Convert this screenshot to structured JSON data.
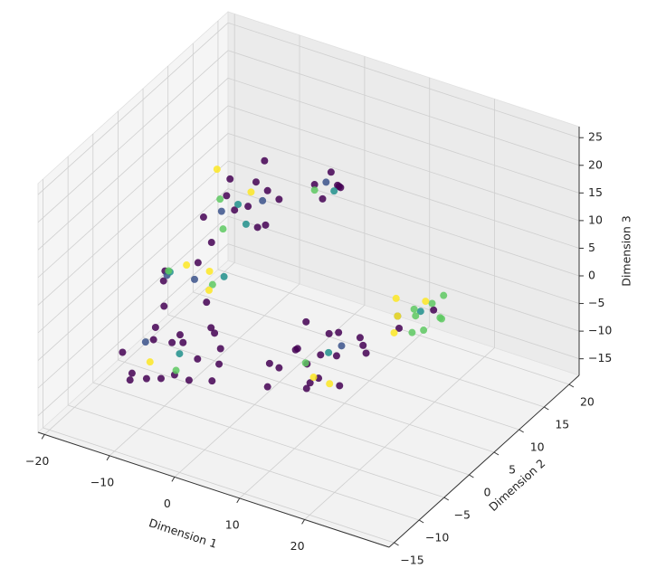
{
  "chart_data": {
    "type": "scatter3d",
    "xlabel": "Dimension 1",
    "ylabel": "Dimension 2",
    "zlabel": "Dimension 3",
    "xlim": [
      -21,
      33
    ],
    "ylim": [
      -16,
      22
    ],
    "zlim": [
      -18,
      27
    ],
    "xticks": [
      {
        "value": -20,
        "label": "−20"
      },
      {
        "value": -10,
        "label": "−10"
      },
      0,
      10,
      20
    ],
    "yticks": [
      {
        "value": -15,
        "label": "−15"
      },
      {
        "value": -10,
        "label": "−10"
      },
      {
        "value": -5,
        "label": "−5"
      },
      0,
      5,
      10,
      15,
      20
    ],
    "zticks": [
      {
        "value": -15,
        "label": "−15"
      },
      {
        "value": -10,
        "label": "−10"
      },
      {
        "value": -5,
        "label": "−5"
      },
      0,
      5,
      10,
      15,
      20,
      25
    ],
    "grid": true,
    "series": [
      {
        "color": "#440154",
        "x": [
          -18,
          -16,
          -15,
          -14,
          -13,
          -12,
          -11,
          -10,
          -9,
          -8,
          -7,
          -6,
          -13,
          -17,
          -10,
          -5,
          -15,
          -9,
          -12,
          -7,
          0,
          2,
          3,
          4,
          5,
          6,
          7,
          8,
          9,
          10,
          1,
          3,
          6,
          8,
          11,
          4,
          7,
          2,
          -14,
          -12,
          -11,
          -10,
          -9,
          -8,
          -7,
          -13,
          -10,
          -6,
          -12,
          -8,
          0,
          1,
          2,
          3,
          4,
          2,
          13,
          16,
          -14,
          -11,
          -13
        ],
        "y": [
          -3,
          1,
          -5,
          -2,
          2,
          -6,
          0,
          -3,
          3,
          -1,
          -4,
          1,
          -8,
          4,
          5,
          -2,
          3,
          -7,
          6,
          2,
          3,
          6,
          1,
          8,
          4,
          9,
          2,
          6,
          10,
          4,
          9,
          11,
          5,
          0,
          8,
          3,
          12,
          0,
          8,
          10,
          13,
          9,
          12,
          11,
          14,
          12,
          15,
          10,
          7,
          13,
          12,
          14,
          11,
          13,
          12,
          14,
          12,
          15,
          0,
          3,
          -1
        ],
        "z": [
          -13,
          -11,
          -14,
          -10,
          -12,
          -13,
          -11,
          -14,
          -10,
          -12,
          -13,
          -11,
          -12,
          -10,
          -13,
          -14,
          -15,
          -11,
          -9,
          -15,
          -13,
          -12,
          -11,
          -14,
          -12,
          -10,
          -13,
          -11,
          -12,
          -14,
          -10,
          -13,
          -15,
          -12,
          -11,
          -9,
          -13,
          -14,
          4,
          7,
          3,
          6,
          9,
          2,
          5,
          8,
          10,
          4,
          1,
          7,
          12,
          13,
          11,
          12,
          13,
          11,
          -9,
          -7,
          -1,
          1,
          2
        ]
      },
      {
        "color": "#3b528b",
        "x": [
          -15,
          -10,
          -12,
          1,
          8,
          12,
          -16,
          -8
        ],
        "y": [
          2,
          1,
          9,
          13,
          7,
          13,
          -1,
          12
        ],
        "z": [
          -2,
          0,
          5,
          12,
          -10,
          -8,
          -12,
          6
        ]
      },
      {
        "color": "#21918c",
        "x": [
          -11,
          -9,
          -13,
          6,
          14,
          3,
          -10,
          -7
        ],
        "y": [
          11,
          10,
          0,
          7,
          15,
          12,
          -2,
          3
        ],
        "z": [
          5,
          3,
          1,
          -12,
          -8,
          12,
          -11,
          0
        ]
      },
      {
        "color": "#5ec962",
        "x": [
          14,
          15,
          16,
          17,
          18,
          15,
          13,
          16,
          -13,
          -11,
          -14,
          4,
          -9,
          0,
          -8
        ],
        "y": [
          14,
          16,
          13,
          15,
          14,
          12,
          15,
          17,
          10,
          8,
          1,
          5,
          -4,
          12,
          2
        ],
        "z": [
          -8,
          -7,
          -9,
          -8,
          -7,
          -9,
          -8,
          -6,
          6,
          3,
          0,
          -13,
          -12,
          11,
          -1
        ]
      },
      {
        "color": "#fde725",
        "x": [
          12,
          13,
          14,
          11,
          -12,
          -10,
          -9,
          -13,
          6,
          -15,
          10,
          -7
        ],
        "y": [
          13,
          11,
          16,
          14,
          2,
          4,
          11,
          -4,
          4,
          12,
          2,
          0
        ],
        "z": [
          -8,
          -9,
          -7,
          -6,
          1,
          -1,
          8,
          -12,
          -14,
          9,
          -12,
          0
        ]
      }
    ]
  }
}
